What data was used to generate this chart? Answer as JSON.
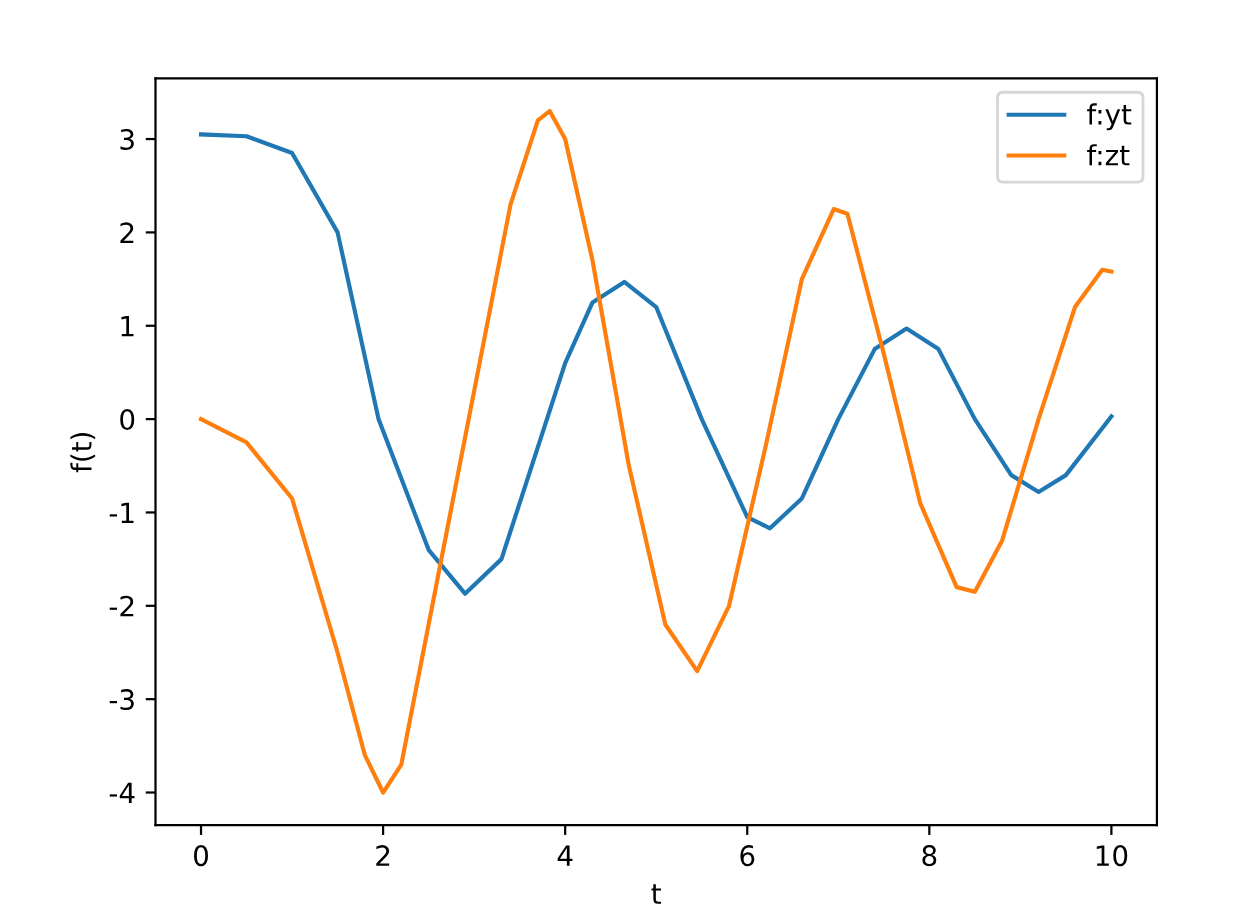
{
  "chart_data": {
    "type": "line",
    "xlabel": "t",
    "ylabel": "f(t)",
    "xlim": [
      -0.5,
      10.5
    ],
    "xticks": [
      0,
      2,
      4,
      6,
      8,
      10
    ],
    "ylim": [
      -4.35,
      3.65
    ],
    "yticks": [
      -4,
      -3,
      -2,
      -1,
      0,
      1,
      2,
      3
    ],
    "legend": "top right",
    "grid": false,
    "marker": "none",
    "line_style": "solid",
    "series": [
      {
        "name": "f:yt",
        "color": "#1f77b4",
        "x": [
          0,
          0.5,
          1.0,
          1.5,
          1.95,
          2.5,
          2.9,
          3.3,
          3.7,
          4.0,
          4.3,
          4.65,
          5.0,
          5.5,
          6.0,
          6.25,
          6.6,
          7.0,
          7.4,
          7.75,
          8.1,
          8.5,
          8.9,
          9.2,
          9.5,
          10
        ],
        "values": [
          3.05,
          3.03,
          2.85,
          2.0,
          0.0,
          -1.4,
          -1.87,
          -1.5,
          -0.3,
          0.6,
          1.25,
          1.47,
          1.2,
          0.0,
          -1.05,
          -1.17,
          -0.85,
          0.0,
          0.75,
          0.97,
          0.75,
          0.0,
          -0.6,
          -0.78,
          -0.6,
          0.03
        ]
      },
      {
        "name": "f:zt",
        "color": "#ff7f0e",
        "x": [
          0,
          0.5,
          1.0,
          1.5,
          1.8,
          2.0,
          2.2,
          2.5,
          3.0,
          3.4,
          3.7,
          3.83,
          4.0,
          4.3,
          4.7,
          5.1,
          5.45,
          5.8,
          6.2,
          6.6,
          6.95,
          7.1,
          7.5,
          7.9,
          8.3,
          8.5,
          8.8,
          9.2,
          9.6,
          9.9,
          10
        ],
        "values": [
          0.0,
          -0.25,
          -0.85,
          -2.5,
          -3.6,
          -4.0,
          -3.7,
          -2.2,
          0.3,
          2.3,
          3.2,
          3.3,
          3.0,
          1.7,
          -0.5,
          -2.2,
          -2.7,
          -2.0,
          -0.3,
          1.5,
          2.25,
          2.2,
          0.7,
          -0.9,
          -1.8,
          -1.85,
          -1.3,
          0.0,
          1.2,
          1.6,
          1.58
        ]
      }
    ]
  }
}
